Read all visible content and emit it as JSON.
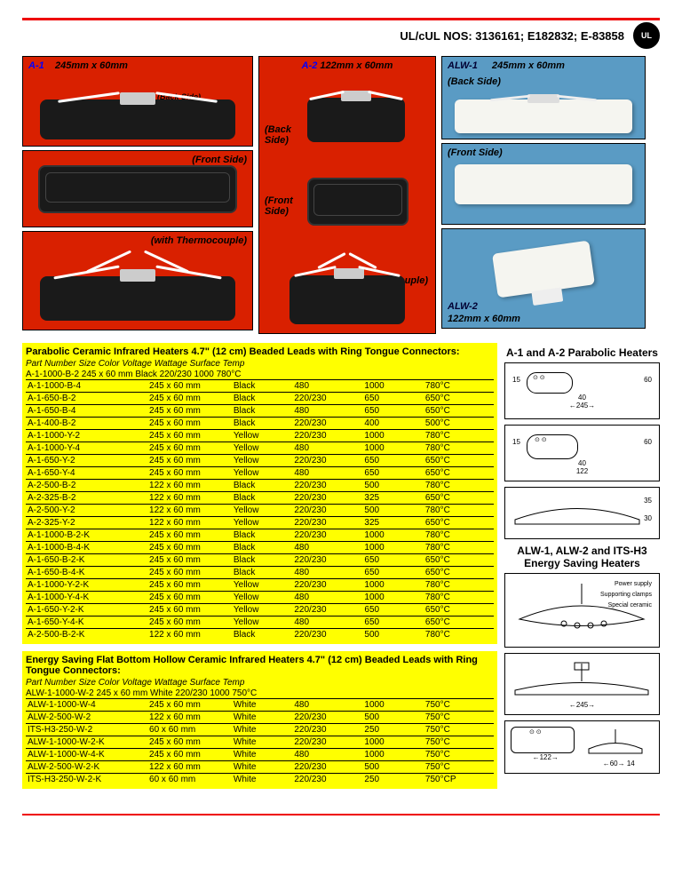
{
  "header": {
    "ul_text": "UL/cUL NOS: 3136161; E182832; E-83858"
  },
  "photos": {
    "a1": {
      "title": "A-1",
      "dim": "245mm x 60mm",
      "back": "(Back Side)",
      "front": "(Front Side)",
      "thermo": "(with Thermocouple)"
    },
    "a2": {
      "title": "A-2",
      "dim": "122mm x 60mm",
      "back": "(Back Side)",
      "front": "(Front Side)",
      "thermo": "(with Thermocouple)"
    },
    "alw1": {
      "title": "ALW-1",
      "dim": "245mm x 60mm",
      "back": "(Back Side)",
      "front": "(Front Side)"
    },
    "alw2": {
      "title": "ALW-2",
      "dim": "122mm x 60mm"
    }
  },
  "table1": {
    "title": "Parabolic Ceramic Infrared Heaters 4.7\" (12 cm) Beaded Leads with Ring Tongue Connectors:",
    "subtitle": "Part Number Size Color Voltage Wattage Surface Temp",
    "ex": "A-1-1000-B-2 245 x 60 mm Black 220/230  1000 780°C",
    "rows": [
      [
        "A-1-1000-B-4",
        "245 x 60 mm",
        "Black",
        "480",
        "1000",
        "780°C"
      ],
      [
        "A-1-650-B-2",
        "245 x 60 mm",
        "Black",
        "220/230",
        "650",
        "650°C"
      ],
      [
        "A-1-650-B-4",
        "245 x 60 mm",
        "Black",
        "480",
        "650",
        "650°C"
      ],
      [
        "A-1-400-B-2",
        "245 x 60 mm",
        "Black",
        "220/230",
        "400",
        "500°C"
      ],
      [
        "A-1-1000-Y-2",
        "245 x 60 mm",
        "Yellow",
        "220/230",
        "1000",
        "780°C"
      ],
      [
        "A-1-1000-Y-4",
        "245 x 60 mm",
        "Yellow",
        "480",
        "1000",
        "780°C"
      ],
      [
        "A-1-650-Y-2",
        "245 x 60 mm",
        "Yellow",
        "220/230",
        "650",
        "650°C"
      ],
      [
        "A-1-650-Y-4",
        "245 x 60 mm",
        "Yellow",
        "480",
        "650",
        "650°C"
      ],
      [
        "A-2-500-B-2",
        "122 x 60 mm",
        "Black",
        "220/230",
        "500",
        "780°C"
      ],
      [
        "A-2-325-B-2",
        "122 x 60 mm",
        "Black",
        "220/230",
        "325",
        "650°C"
      ],
      [
        "A-2-500-Y-2",
        "122 x 60 mm",
        "Yellow",
        "220/230",
        "500",
        "780°C"
      ],
      [
        "A-2-325-Y-2",
        "122 x 60 mm",
        "Yellow",
        "220/230",
        "325",
        "650°C"
      ],
      [
        "A-1-1000-B-2-K",
        "245 x 60 mm",
        "Black",
        "220/230",
        "1000",
        "780°C"
      ],
      [
        "A-1-1000-B-4-K",
        "245 x 60 mm",
        "Black",
        "480",
        "1000",
        "780°C"
      ],
      [
        "A-1-650-B-2-K",
        "245 x 60 mm",
        "Black",
        "220/230",
        "650",
        "650°C"
      ],
      [
        "A-1-650-B-4-K",
        "245 x 60 mm",
        "Black",
        "480",
        "650",
        "650°C"
      ],
      [
        "A-1-1000-Y-2-K",
        "245 x 60 mm",
        "Yellow",
        "220/230",
        "1000",
        "780°C"
      ],
      [
        "A-1-1000-Y-4-K",
        "245 x 60 mm",
        "Yellow",
        "480",
        "1000",
        "780°C"
      ],
      [
        "A-1-650-Y-2-K",
        "245 x 60 mm",
        "Yellow",
        "220/230",
        "650",
        "650°C"
      ],
      [
        "A-1-650-Y-4-K",
        "245 x 60 mm",
        "Yellow",
        "480",
        "650",
        "650°C"
      ],
      [
        "A-2-500-B-2-K",
        "122 x 60 mm",
        "Black",
        "220/230",
        "500",
        "780°C"
      ]
    ]
  },
  "table2": {
    "title": "Energy Saving Flat Bottom Hollow Ceramic Infrared Heaters 4.7\" (12 cm) Beaded Leads with Ring Tongue Connectors:",
    "subtitle": "Part Number Size Color Voltage Wattage Surface Temp",
    "ex": "ALW-1-1000-W-2 245 x 60 mm White 220/230  1000 750°C",
    "rows": [
      [
        "ALW-1-1000-W-4",
        "245 x 60 mm",
        "White",
        "480",
        "1000",
        "750°C"
      ],
      [
        "ALW-2-500-W-2",
        "122 x 60 mm",
        "White",
        "220/230",
        "500",
        "750°C"
      ],
      [
        "ITS-H3-250-W-2",
        "60 x 60 mm",
        "White",
        "220/230",
        "250",
        "750°C"
      ],
      [
        "ALW-1-1000-W-2-K",
        "245 x 60 mm",
        "White",
        "220/230",
        "1000",
        "750°C"
      ],
      [
        "ALW-1-1000-W-4-K",
        "245 x 60 mm",
        "White",
        "480",
        "1000",
        "750°C"
      ],
      [
        "ALW-2-500-W-2-K",
        "122 x 60 mm",
        "White",
        "220/230",
        "500",
        "750°C"
      ],
      [
        "ITS-H3-250-W-2-K",
        "60 x 60 mm",
        "White",
        "220/230",
        "250",
        "750°CP"
      ]
    ]
  },
  "diag1": {
    "title": "A-1 and A-2 Parabolic Heaters",
    "d1": "15",
    "d2": "60",
    "d3": "40",
    "d4": "245",
    "d5": "122",
    "d6": "35",
    "d7": "30"
  },
  "diag2": {
    "title": "ALW-1, ALW-2 and ITS-H3 Energy Saving Heaters",
    "l1": "Power supply",
    "l2": "Supporting clamps",
    "l3": "Special ceramic",
    "d1": "245",
    "d2": "122",
    "d3": "60",
    "d4": "14"
  },
  "colors": {
    "yellow": "#ffff00",
    "red": "#d92000",
    "blue": "#5a9bc4",
    "rule": "#e00000"
  }
}
